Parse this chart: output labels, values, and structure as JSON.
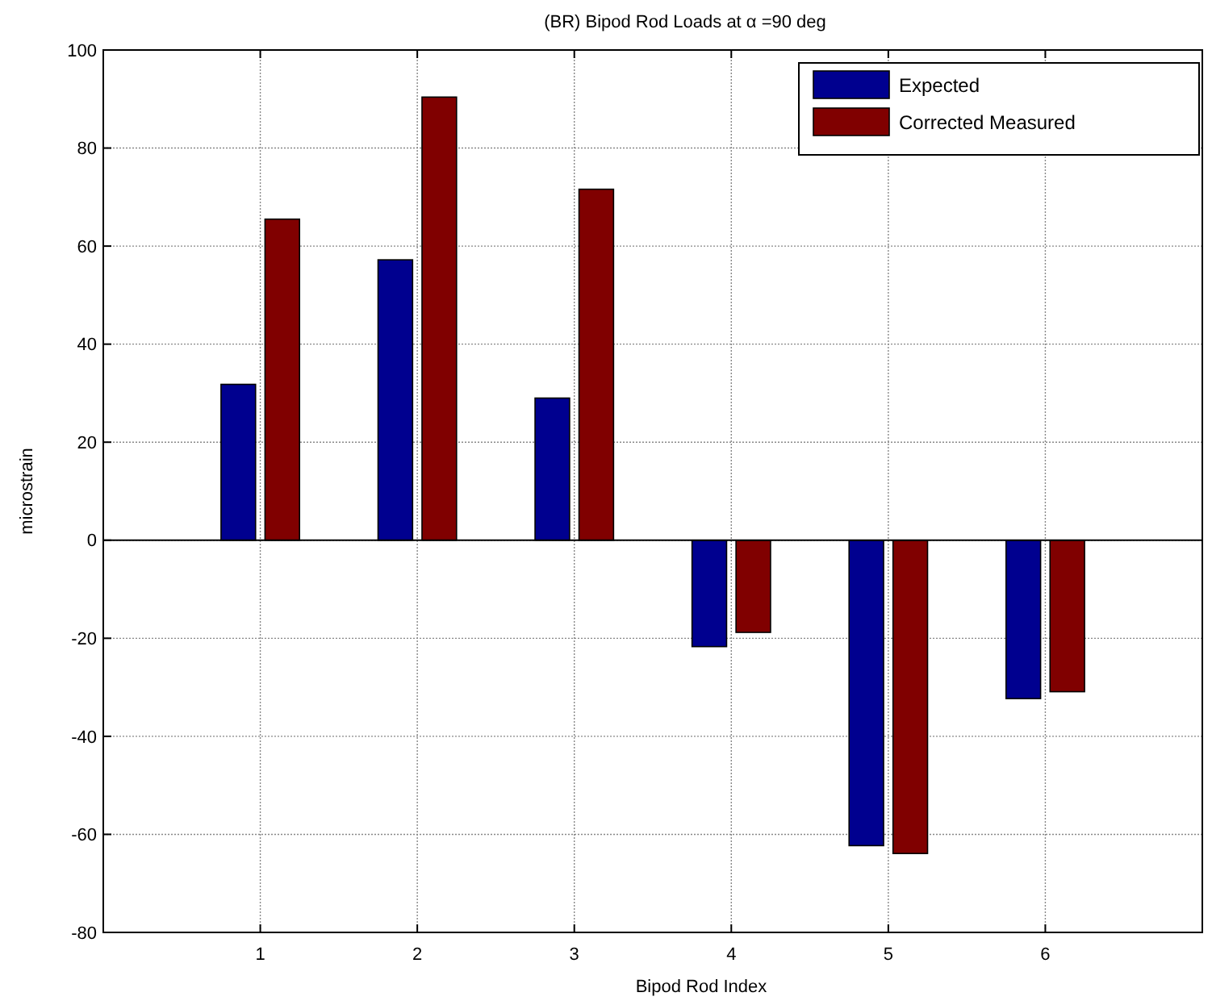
{
  "chart_data": {
    "type": "bar",
    "title": "(BR) Bipod Rod Loads at α =90 deg",
    "xlabel": "Bipod Rod Index",
    "ylabel": "microstrain",
    "x": [
      1,
      2,
      3,
      4,
      5,
      6
    ],
    "series": [
      {
        "name": "Expected",
        "color": "#00008f",
        "values": [
          31.8,
          57.2,
          29.0,
          -21.7,
          -62.3,
          -32.3
        ]
      },
      {
        "name": "Corrected Measured",
        "color": "#800000",
        "values": [
          65.5,
          90.4,
          71.6,
          -18.8,
          -63.9,
          -30.9
        ]
      }
    ],
    "xlim": [
      0,
      7
    ],
    "xticks": [
      1,
      2,
      3,
      4,
      5,
      6
    ],
    "ylim": [
      -80,
      100
    ],
    "yticks": [
      -80,
      -60,
      -40,
      -20,
      0,
      20,
      40,
      60,
      80,
      100
    ],
    "grid": true,
    "legend": "top right"
  }
}
